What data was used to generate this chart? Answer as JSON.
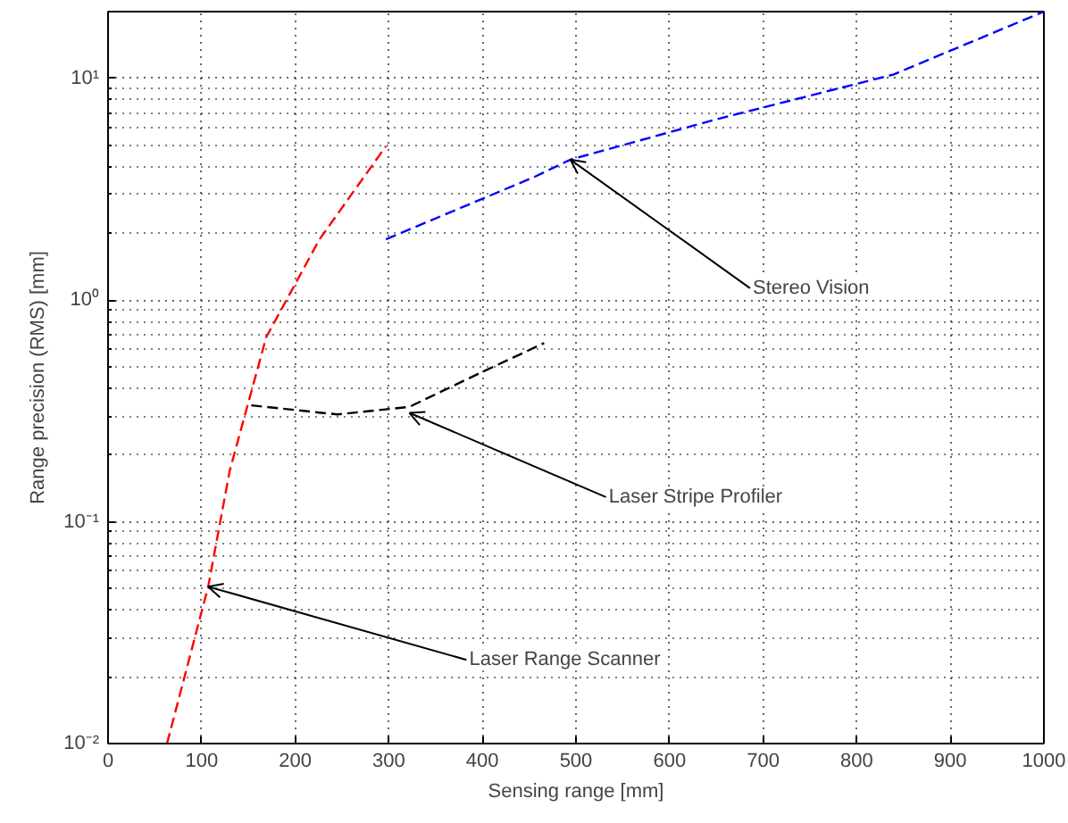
{
  "chart_data": {
    "type": "line",
    "xlabel": "Sensing range [mm]",
    "ylabel": "Range precision (RMS) [mm]",
    "log": "y",
    "grid": true,
    "line_style": "dashed",
    "marker": "none",
    "xlim": [
      0,
      1000
    ],
    "xticks": [
      0,
      100,
      200,
      300,
      400,
      500,
      600,
      700,
      800,
      900,
      1000
    ],
    "ylim": [
      0.01,
      20
    ],
    "yticks": [
      {
        "value": 0.01,
        "label": "10⁻²"
      },
      {
        "value": 0.1,
        "label": "10⁻¹"
      },
      {
        "value": 1,
        "label": "10⁰"
      },
      {
        "value": 10,
        "label": "10¹"
      }
    ],
    "series": [
      {
        "color": "#ff0000",
        "x": [
          63,
          107,
          130,
          169,
          226,
          297
        ],
        "values": [
          0.01,
          0.051,
          0.17,
          0.68,
          1.88,
          4.95
        ]
      },
      {
        "color": "#000000",
        "x": [
          153,
          245,
          322,
          398,
          466
        ],
        "values": [
          0.335,
          0.305,
          0.33,
          0.47,
          0.64
        ]
      },
      {
        "color": "#0000ff",
        "x": [
          297,
          456,
          494,
          648,
          839,
          1000
        ],
        "values": [
          1.88,
          3.6,
          4.3,
          6.5,
          10.4,
          20
        ]
      }
    ],
    "annotations": [
      {
        "text": "Stereo Vision",
        "x": 494,
        "y": 4.3
      },
      {
        "text": "Laser Stripe Profiler",
        "x": 322,
        "y": 0.31
      },
      {
        "text": "Laser Range Scanner",
        "x": 107,
        "y": 0.051
      }
    ]
  }
}
